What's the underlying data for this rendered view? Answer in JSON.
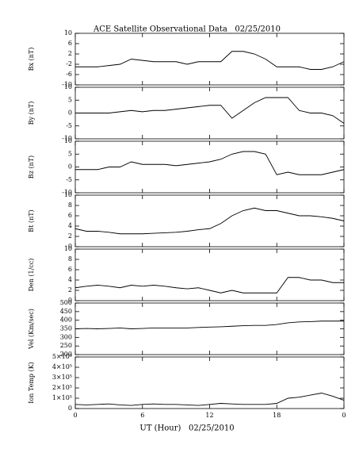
{
  "chart_data": [
    {
      "type": "line",
      "title": "ACE Satellite Observational Data   02/25/2010",
      "ylabel": "Bx (nT)",
      "x": [
        0,
        1,
        2,
        3,
        4,
        5,
        6,
        7,
        8,
        9,
        10,
        11,
        12,
        13,
        14,
        15,
        16,
        17,
        18,
        19,
        20,
        21,
        22,
        23,
        24
      ],
      "values": [
        -3,
        -3,
        -3,
        -2.5,
        -2,
        0,
        -0.5,
        -1,
        -1,
        -1,
        -2,
        -1,
        -1,
        -1,
        3,
        3,
        2,
        0,
        -3,
        -3,
        -3,
        -4,
        -4,
        -3,
        -1
      ],
      "xlim": [
        0,
        24
      ],
      "xticks": [
        0,
        6,
        12,
        18,
        {
          "value": 24,
          "label": "0"
        }
      ],
      "ylim": [
        -10,
        10
      ],
      "yticks": [
        -10,
        -6,
        -2,
        2,
        6,
        10
      ],
      "color": "#000000"
    },
    {
      "type": "line",
      "ylabel": "By (nT)",
      "x": [
        0,
        1,
        2,
        3,
        4,
        5,
        6,
        7,
        8,
        9,
        10,
        11,
        12,
        13,
        14,
        15,
        16,
        17,
        18,
        19,
        20,
        21,
        22,
        23,
        24
      ],
      "values": [
        0,
        0,
        0,
        0,
        0.5,
        1,
        0.5,
        1,
        1,
        1.5,
        2,
        2.5,
        3,
        3,
        -2,
        1,
        4,
        6,
        6,
        6,
        1,
        0,
        0,
        -1,
        -4
      ],
      "xlim": [
        0,
        24
      ],
      "xticks": [
        0,
        6,
        12,
        18,
        {
          "value": 24,
          "label": "0"
        }
      ],
      "ylim": [
        -10,
        10
      ],
      "yticks": [
        -10,
        -5,
        0,
        5,
        10
      ],
      "color": "#000000"
    },
    {
      "type": "line",
      "ylabel": "Bz (nT)",
      "x": [
        0,
        1,
        2,
        3,
        4,
        5,
        6,
        7,
        8,
        9,
        10,
        11,
        12,
        13,
        14,
        15,
        16,
        17,
        18,
        19,
        20,
        21,
        22,
        23,
        24
      ],
      "values": [
        -1,
        -1,
        -1,
        0,
        0,
        2,
        1,
        1,
        1,
        0.5,
        1,
        1.5,
        2,
        3,
        5,
        6,
        6,
        5,
        -3,
        -2,
        -3,
        -3,
        -3,
        -2,
        -1
      ],
      "xlim": [
        0,
        24
      ],
      "xticks": [
        0,
        6,
        12,
        18,
        {
          "value": 24,
          "label": "0"
        }
      ],
      "ylim": [
        -10,
        10
      ],
      "yticks": [
        -10,
        -5,
        0,
        5,
        10
      ],
      "color": "#000000"
    },
    {
      "type": "line",
      "ylabel": "Bt (nT)",
      "x": [
        0,
        1,
        2,
        3,
        4,
        5,
        6,
        7,
        8,
        9,
        10,
        11,
        12,
        13,
        14,
        15,
        16,
        17,
        18,
        19,
        20,
        21,
        22,
        23,
        24
      ],
      "values": [
        3.5,
        3,
        3,
        2.8,
        2.5,
        2.5,
        2.5,
        2.6,
        2.7,
        2.8,
        3,
        3.3,
        3.5,
        4.5,
        6,
        7,
        7.5,
        7,
        7,
        6.5,
        6,
        6,
        5.8,
        5.5,
        5
      ],
      "xlim": [
        0,
        24
      ],
      "xticks": [
        0,
        6,
        12,
        18,
        {
          "value": 24,
          "label": "0"
        }
      ],
      "ylim": [
        0,
        10
      ],
      "yticks": [
        0,
        2,
        4,
        6,
        8,
        10
      ],
      "color": "#000000"
    },
    {
      "type": "line",
      "ylabel": "Den (1/cc)",
      "x": [
        0,
        1,
        2,
        3,
        4,
        5,
        6,
        7,
        8,
        9,
        10,
        11,
        12,
        13,
        14,
        15,
        16,
        17,
        18,
        19,
        20,
        21,
        22,
        23,
        24
      ],
      "values": [
        2.5,
        2.8,
        3,
        2.8,
        2.5,
        3,
        2.8,
        3,
        2.8,
        2.5,
        2.3,
        2.5,
        2,
        1.5,
        2,
        1.5,
        1.5,
        1.5,
        1.5,
        4.5,
        4.5,
        4,
        4,
        3.5,
        3.5
      ],
      "xlim": [
        0,
        24
      ],
      "xticks": [
        0,
        6,
        12,
        18,
        {
          "value": 24,
          "label": "0"
        }
      ],
      "ylim": [
        0,
        10
      ],
      "yticks": [
        0,
        2,
        4,
        6,
        8,
        10
      ],
      "color": "#000000"
    },
    {
      "type": "line",
      "ylabel": "Vel (Km/sec)",
      "x": [
        0,
        1,
        2,
        3,
        4,
        5,
        6,
        7,
        8,
        9,
        10,
        11,
        12,
        13,
        14,
        15,
        16,
        17,
        18,
        19,
        20,
        21,
        22,
        23,
        24
      ],
      "values": [
        350,
        352,
        350,
        352,
        355,
        350,
        352,
        355,
        355,
        355,
        355,
        358,
        360,
        362,
        365,
        368,
        370,
        370,
        375,
        385,
        390,
        392,
        395,
        395,
        395
      ],
      "xlim": [
        0,
        24
      ],
      "xticks": [
        0,
        6,
        12,
        18,
        {
          "value": 24,
          "label": "0"
        }
      ],
      "ylim": [
        200,
        500
      ],
      "yticks": [
        200,
        250,
        300,
        350,
        400,
        450,
        500
      ],
      "color": "#000000"
    },
    {
      "type": "line",
      "ylabel": "Ion Temp (K)",
      "xlabel": "UT (Hour)   02/25/2010",
      "x": [
        0,
        1,
        2,
        3,
        4,
        5,
        6,
        7,
        8,
        9,
        10,
        11,
        12,
        13,
        14,
        15,
        16,
        17,
        18,
        19,
        20,
        21,
        22,
        23,
        24
      ],
      "values": [
        40000,
        35000,
        40000,
        45000,
        35000,
        30000,
        40000,
        45000,
        40000,
        40000,
        35000,
        30000,
        40000,
        50000,
        45000,
        40000,
        40000,
        40000,
        50000,
        100000,
        110000,
        130000,
        150000,
        120000,
        80000
      ],
      "xlim": [
        0,
        24
      ],
      "xticks": [
        0,
        6,
        12,
        18,
        {
          "value": 24,
          "label": "0"
        }
      ],
      "ylim": [
        0,
        500000
      ],
      "yticks": [
        0,
        {
          "value": 100000,
          "label": "1×10⁵"
        },
        {
          "value": 200000,
          "label": "2×10⁵"
        },
        {
          "value": 300000,
          "label": "3×10⁵"
        },
        {
          "value": 400000,
          "label": "4×10⁵"
        },
        {
          "value": 500000,
          "label": "5×10⁵"
        }
      ],
      "color": "#000000"
    }
  ]
}
